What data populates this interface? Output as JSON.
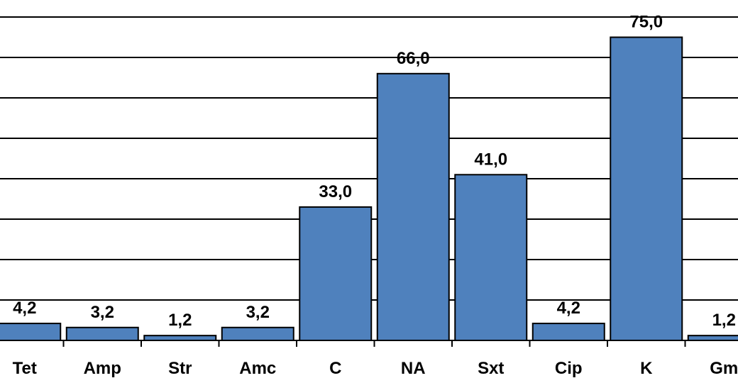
{
  "chart_data": {
    "type": "bar",
    "title": "",
    "xlabel": "",
    "ylabel": "",
    "categories": [
      "Tet",
      "Amp",
      "Str",
      "Amc",
      "C",
      "NA",
      "Sxt",
      "Cip",
      "K",
      "Gm"
    ],
    "values": [
      4.2,
      3.2,
      1.2,
      3.2,
      33.0,
      66.0,
      41.0,
      4.2,
      75.0,
      1.2
    ],
    "data_labels": [
      "4,2",
      "3,2",
      "1,2",
      "3,2",
      "33,0",
      "66,0",
      "41,0",
      "4,2",
      "75,0",
      "1,2"
    ],
    "ylim": [
      0,
      80
    ],
    "grid": true,
    "grid_step": 10,
    "bar_color": "#4f81bd"
  }
}
